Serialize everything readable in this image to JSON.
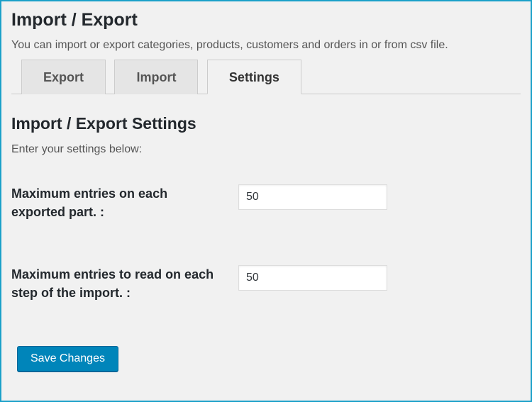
{
  "page": {
    "title": "Import / Export",
    "description": "You can import or export categories, products, customers and orders in or from csv file."
  },
  "tabs": [
    {
      "label": "Export",
      "active": false
    },
    {
      "label": "Import",
      "active": false
    },
    {
      "label": "Settings",
      "active": true
    }
  ],
  "section": {
    "title": "Import / Export Settings",
    "subtitle": "Enter your settings below:"
  },
  "fields": {
    "max_export": {
      "label": "Maximum entries on each exported part. :",
      "value": "50"
    },
    "max_import": {
      "label": "Maximum entries to read on each step of the import. :",
      "value": "50"
    }
  },
  "buttons": {
    "save": "Save Changes"
  },
  "colors": {
    "frame_border": "#1aa0c9",
    "page_bg": "#f1f1f1",
    "tab_inactive_bg": "#e5e5e5",
    "tab_border": "#cccccc",
    "primary_button_bg": "#0085ba",
    "primary_button_border": "#006799",
    "input_border": "#dddddd",
    "text_heading": "#23282d",
    "text_body": "#555555"
  }
}
